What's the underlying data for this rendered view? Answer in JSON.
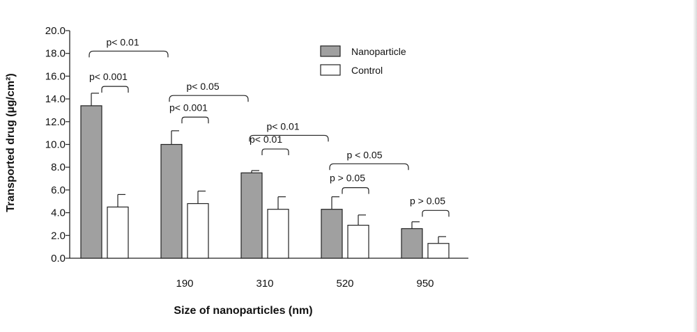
{
  "chart_data": {
    "type": "bar",
    "title": "",
    "xlabel": "Size of nanoparticles (nm)",
    "ylabel": "Transported drug (µg/cm²)",
    "ylim": [
      0,
      20
    ],
    "yticks": [
      "0.0",
      "2.0",
      "4.0",
      "6.0",
      "8.0",
      "10.0",
      "12.0",
      "14.0",
      "16.0",
      "18.0",
      "20.0"
    ],
    "categories": [
      "",
      "190",
      "310",
      "520",
      "950"
    ],
    "series": [
      {
        "name": "Nanoparticle",
        "color": "#a0a0a0",
        "values": [
          13.4,
          10.0,
          7.5,
          4.3,
          2.6
        ],
        "errors": [
          1.1,
          1.2,
          0.2,
          1.1,
          0.6
        ]
      },
      {
        "name": "Control",
        "color": "#ffffff",
        "values": [
          4.5,
          4.8,
          4.3,
          2.9,
          1.3
        ],
        "errors": [
          1.1,
          1.1,
          1.1,
          0.9,
          0.6
        ]
      }
    ],
    "legend_position": "top-right",
    "grid": false,
    "annotations": [
      {
        "text": "p< 0.01",
        "type": "between-groups",
        "from": 0,
        "to": 1,
        "level": 18.2
      },
      {
        "text": "p< 0.001",
        "type": "within-group",
        "group": 0,
        "level": 15.1
      },
      {
        "text": "p< 0.05",
        "type": "between-groups",
        "from": 1,
        "to": 2,
        "level": 14.3
      },
      {
        "text": "p< 0.001",
        "type": "within-group",
        "group": 1,
        "level": 12.4
      },
      {
        "text": "p< 0.01",
        "type": "between-groups",
        "from": 2,
        "to": 3,
        "level": 10.8
      },
      {
        "text": "p< 0.01",
        "type": "within-group",
        "group": 2,
        "level": 9.6
      },
      {
        "text": "p < 0.05",
        "type": "between-groups",
        "from": 3,
        "to": 4,
        "level": 8.3
      },
      {
        "text": "p > 0.05",
        "type": "within-group",
        "group": 3,
        "level": 6.2
      },
      {
        "text": "p > 0.05",
        "type": "within-group",
        "group": 4,
        "level": 4.2
      }
    ]
  }
}
